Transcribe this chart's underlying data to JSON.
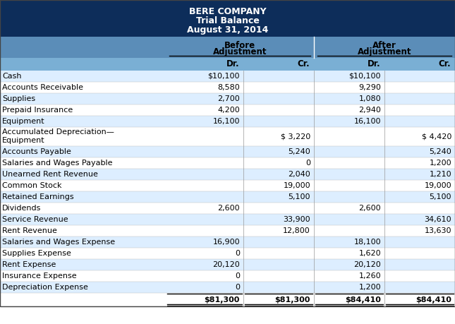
{
  "title_line1": "BERE COMPANY",
  "title_line2": "Trial Balance",
  "title_line3": "August 31, 2014",
  "header_bg": "#0d2d5a",
  "subheader_bg": "#5b8db8",
  "col_header_bg": "#7aafd4",
  "row_bg_light": "#ddeeff",
  "row_bg_white": "#ffffff",
  "rows": [
    [
      "Cash",
      "$10,100",
      "",
      "$10,100",
      ""
    ],
    [
      "Accounts Receivable",
      "8,580",
      "",
      "9,290",
      ""
    ],
    [
      "Supplies",
      "2,700",
      "",
      "1,080",
      ""
    ],
    [
      "Prepaid Insurance",
      "4,200",
      "",
      "2,940",
      ""
    ],
    [
      "Equipment",
      "16,100",
      "",
      "16,100",
      ""
    ],
    [
      "Accumulated Depreciation—\nEquipment",
      "",
      "$ 3,220",
      "",
      "$ 4,420"
    ],
    [
      "Accounts Payable",
      "",
      "5,240",
      "",
      "5,240"
    ],
    [
      "Salaries and Wages Payable",
      "",
      "0",
      "",
      "1,200"
    ],
    [
      "Unearned Rent Revenue",
      "",
      "2,040",
      "",
      "1,210"
    ],
    [
      "Common Stock",
      "",
      "19,000",
      "",
      "19,000"
    ],
    [
      "Retained Earnings",
      "",
      "5,100",
      "",
      "5,100"
    ],
    [
      "Dividends",
      "2,600",
      "",
      "2,600",
      ""
    ],
    [
      "Service Revenue",
      "",
      "33,900",
      "",
      "34,610"
    ],
    [
      "Rent Revenue",
      "",
      "12,800",
      "",
      "13,630"
    ],
    [
      "Salaries and Wages Expense",
      "16,900",
      "",
      "18,100",
      ""
    ],
    [
      "Supplies Expense",
      "0",
      "",
      "1,620",
      ""
    ],
    [
      "Rent Expense",
      "20,120",
      "",
      "20,120",
      ""
    ],
    [
      "Insurance Expense",
      "0",
      "",
      "1,260",
      ""
    ],
    [
      "Depreciation Expense",
      "0",
      "",
      "1,200",
      ""
    ],
    [
      "",
      "$81,300",
      "$81,300",
      "$84,410",
      "$84,410"
    ]
  ]
}
